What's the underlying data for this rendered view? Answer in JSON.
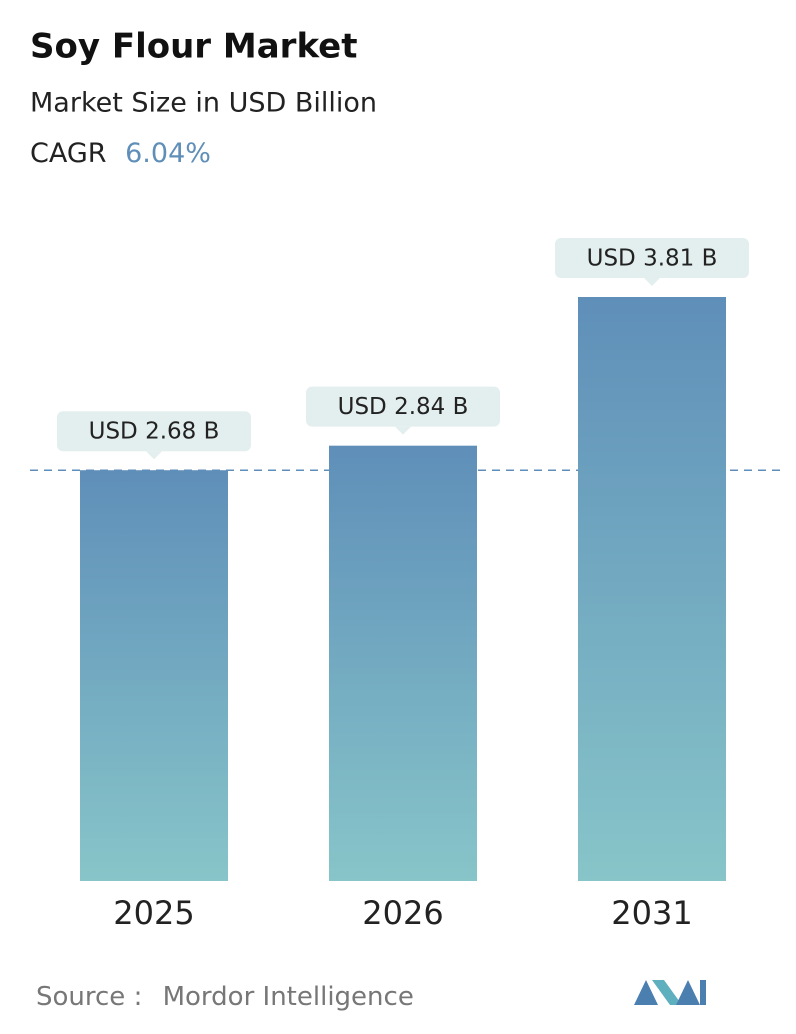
{
  "chart_data": {
    "type": "bar",
    "title": "Soy Flour Market",
    "subtitle": "Market Size in USD Billion",
    "cagr_label": "CAGR",
    "cagr_value": "6.04%",
    "categories": [
      "2025",
      "2026",
      "2031"
    ],
    "values": [
      2.68,
      2.84,
      3.81
    ],
    "value_labels": [
      "USD 2.68 B",
      "USD 2.84 B",
      "USD 3.81 B"
    ],
    "source_label": "Source :",
    "source": "Mordor Intelligence"
  }
}
